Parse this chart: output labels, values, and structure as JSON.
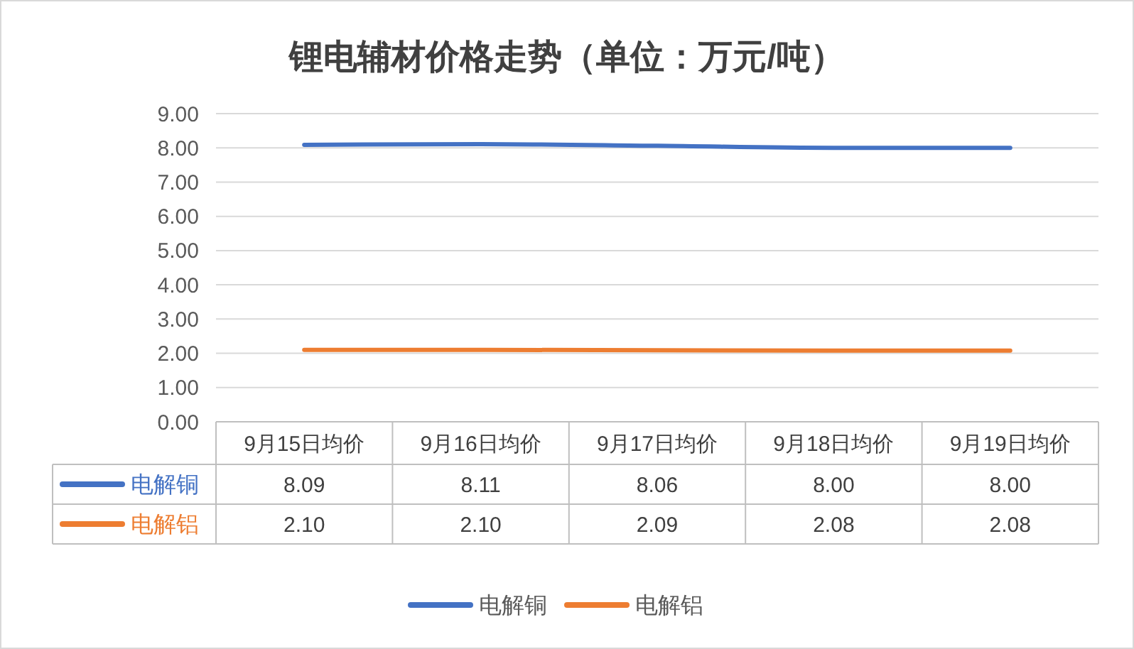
{
  "chart_data": {
    "type": "line",
    "title": "锂电辅材价格走势（单位：万元/吨）",
    "categories": [
      "9月15日均价",
      "9月16日均价",
      "9月17日均价",
      "9月18日均价",
      "9月19日均价"
    ],
    "series": [
      {
        "name": "电解铜",
        "color": "#4472c4",
        "values": [
          8.09,
          8.11,
          8.06,
          8.0,
          8.0
        ],
        "value_labels": [
          "8.09",
          "8.11",
          "8.06",
          "8.00",
          "8.00"
        ]
      },
      {
        "name": "电解铝",
        "color": "#ed7d31",
        "values": [
          2.1,
          2.1,
          2.09,
          2.08,
          2.08
        ],
        "value_labels": [
          "2.10",
          "2.10",
          "2.09",
          "2.08",
          "2.08"
        ]
      }
    ],
    "ylim": [
      0,
      9
    ],
    "yticks": [
      {
        "value": 0,
        "label": "0.00"
      },
      {
        "value": 1,
        "label": "1.00"
      },
      {
        "value": 2,
        "label": "2.00"
      },
      {
        "value": 3,
        "label": "3.00"
      },
      {
        "value": 4,
        "label": "4.00"
      },
      {
        "value": 5,
        "label": "5.00"
      },
      {
        "value": 6,
        "label": "6.00"
      },
      {
        "value": 7,
        "label": "7.00"
      },
      {
        "value": 8,
        "label": "8.00"
      },
      {
        "value": 9,
        "label": "9.00"
      }
    ],
    "grid": "y",
    "legend": "bottom",
    "marker": "none",
    "line_style": "solid"
  }
}
